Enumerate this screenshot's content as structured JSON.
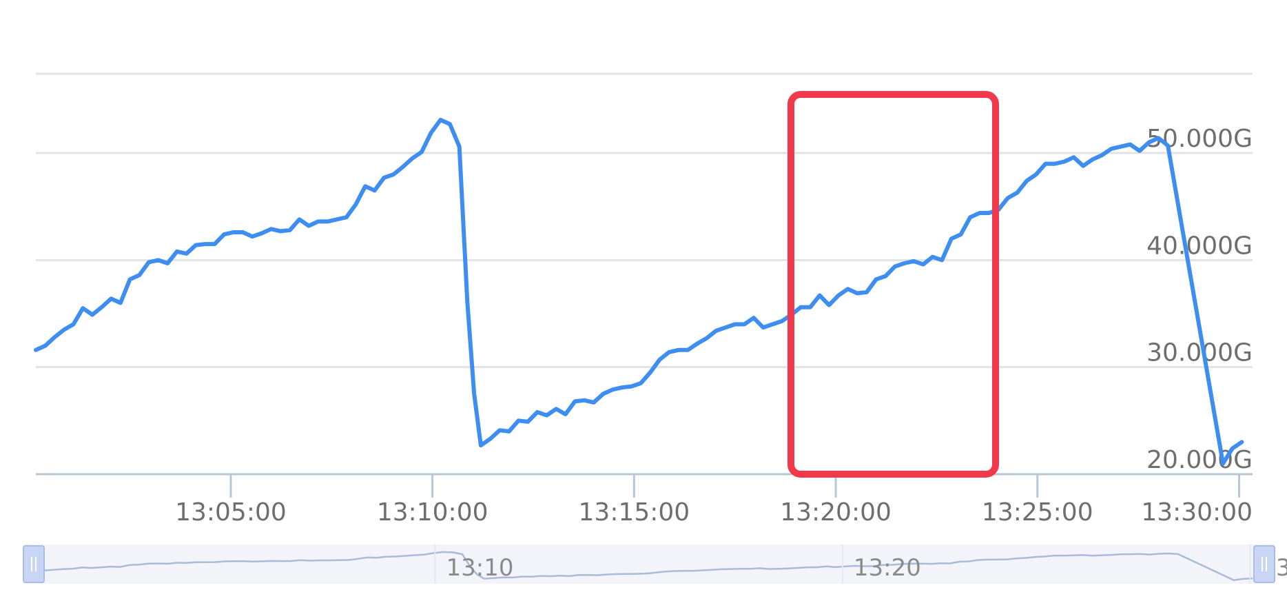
{
  "chart_data": {
    "type": "line",
    "title": "",
    "xlabel": "",
    "ylabel": "",
    "x_range": [
      "13:00:10",
      "13:30:20"
    ],
    "ylim": [
      20,
      58.5
    ],
    "y_unit": "G",
    "grid": true,
    "y_axis_position": "right",
    "colors": {
      "line": "#3d8ef0",
      "grid": "#e3e3e3",
      "axis": "#b9c6d6",
      "highlight": "#f03a4b",
      "zoom_fill": "#f2f4fa",
      "zoom_handle": "#c9d5f5"
    },
    "y_ticks": [
      {
        "value": 20,
        "label": "20.000G"
      },
      {
        "value": 30,
        "label": "30.000G"
      },
      {
        "value": 40,
        "label": "40.000G"
      },
      {
        "value": 50,
        "label": "50.000G"
      },
      {
        "value": 60,
        "label": ""
      }
    ],
    "x_ticks": [
      "13:05:00",
      "13:10:00",
      "13:15:00",
      "13:20:00",
      "13:25:00",
      "13:30:00"
    ],
    "series": [
      {
        "points": [
          [
            "13:00:10",
            31.6
          ],
          [
            "13:00:24",
            32.0
          ],
          [
            "13:00:38",
            32.8
          ],
          [
            "13:00:52",
            33.5
          ],
          [
            "13:01:06",
            34.0
          ],
          [
            "13:01:20",
            35.5
          ],
          [
            "13:01:34",
            34.9
          ],
          [
            "13:01:48",
            35.6
          ],
          [
            "13:02:02",
            36.4
          ],
          [
            "13:02:16",
            36.0
          ],
          [
            "13:02:30",
            38.2
          ],
          [
            "13:02:44",
            38.6
          ],
          [
            "13:02:58",
            39.8
          ],
          [
            "13:03:12",
            40.0
          ],
          [
            "13:03:26",
            39.7
          ],
          [
            "13:03:40",
            40.8
          ],
          [
            "13:03:54",
            40.6
          ],
          [
            "13:04:08",
            41.4
          ],
          [
            "13:04:22",
            41.5
          ],
          [
            "13:04:36",
            41.5
          ],
          [
            "13:04:50",
            42.4
          ],
          [
            "13:05:04",
            42.6
          ],
          [
            "13:05:18",
            42.6
          ],
          [
            "13:05:32",
            42.2
          ],
          [
            "13:05:46",
            42.5
          ],
          [
            "13:06:00",
            42.9
          ],
          [
            "13:06:14",
            42.7
          ],
          [
            "13:06:28",
            42.8
          ],
          [
            "13:06:42",
            43.8
          ],
          [
            "13:06:56",
            43.2
          ],
          [
            "13:07:10",
            43.6
          ],
          [
            "13:07:24",
            43.6
          ],
          [
            "13:07:38",
            43.8
          ],
          [
            "13:07:52",
            44.0
          ],
          [
            "13:08:06",
            45.2
          ],
          [
            "13:08:20",
            46.9
          ],
          [
            "13:08:34",
            46.5
          ],
          [
            "13:08:48",
            47.7
          ],
          [
            "13:09:02",
            48.0
          ],
          [
            "13:09:16",
            48.7
          ],
          [
            "13:09:30",
            49.5
          ],
          [
            "13:09:44",
            50.1
          ],
          [
            "13:09:58",
            51.9
          ],
          [
            "13:10:12",
            53.1
          ],
          [
            "13:10:26",
            52.7
          ],
          [
            "13:10:40",
            50.6
          ],
          [
            "13:10:52",
            36.0
          ],
          [
            "13:11:02",
            27.5
          ],
          [
            "13:11:12",
            22.7
          ],
          [
            "13:11:26",
            23.3
          ],
          [
            "13:11:40",
            24.1
          ],
          [
            "13:11:54",
            24.0
          ],
          [
            "13:12:08",
            25.0
          ],
          [
            "13:12:22",
            24.9
          ],
          [
            "13:12:36",
            25.8
          ],
          [
            "13:12:50",
            25.5
          ],
          [
            "13:13:04",
            26.1
          ],
          [
            "13:13:18",
            25.6
          ],
          [
            "13:13:32",
            26.8
          ],
          [
            "13:13:46",
            26.9
          ],
          [
            "13:14:00",
            26.7
          ],
          [
            "13:14:14",
            27.5
          ],
          [
            "13:14:28",
            27.9
          ],
          [
            "13:14:42",
            28.1
          ],
          [
            "13:14:56",
            28.2
          ],
          [
            "13:15:10",
            28.5
          ],
          [
            "13:15:24",
            29.5
          ],
          [
            "13:15:38",
            30.7
          ],
          [
            "13:15:52",
            31.4
          ],
          [
            "13:16:06",
            31.6
          ],
          [
            "13:16:20",
            31.6
          ],
          [
            "13:16:34",
            32.2
          ],
          [
            "13:16:48",
            32.7
          ],
          [
            "13:17:02",
            33.4
          ],
          [
            "13:17:16",
            33.7
          ],
          [
            "13:17:30",
            34.0
          ],
          [
            "13:17:44",
            34.0
          ],
          [
            "13:17:58",
            34.6
          ],
          [
            "13:18:12",
            33.7
          ],
          [
            "13:18:26",
            34.0
          ],
          [
            "13:18:40",
            34.3
          ],
          [
            "13:18:54",
            34.9
          ],
          [
            "13:19:08",
            35.6
          ],
          [
            "13:19:22",
            35.6
          ],
          [
            "13:19:36",
            36.7
          ],
          [
            "13:19:50",
            35.8
          ],
          [
            "13:20:04",
            36.7
          ],
          [
            "13:20:18",
            37.3
          ],
          [
            "13:20:32",
            36.9
          ],
          [
            "13:20:46",
            37.0
          ],
          [
            "13:21:00",
            38.2
          ],
          [
            "13:21:14",
            38.5
          ],
          [
            "13:21:28",
            39.4
          ],
          [
            "13:21:42",
            39.7
          ],
          [
            "13:21:56",
            39.9
          ],
          [
            "13:22:10",
            39.6
          ],
          [
            "13:22:24",
            40.3
          ],
          [
            "13:22:38",
            40.0
          ],
          [
            "13:22:52",
            42.0
          ],
          [
            "13:23:06",
            42.4
          ],
          [
            "13:23:20",
            44.0
          ],
          [
            "13:23:34",
            44.4
          ],
          [
            "13:23:48",
            44.4
          ],
          [
            "13:24:02",
            44.7
          ],
          [
            "13:24:16",
            45.8
          ],
          [
            "13:24:30",
            46.3
          ],
          [
            "13:24:44",
            47.4
          ],
          [
            "13:24:58",
            48.0
          ],
          [
            "13:25:12",
            49.0
          ],
          [
            "13:25:26",
            49.0
          ],
          [
            "13:25:40",
            49.2
          ],
          [
            "13:25:54",
            49.6
          ],
          [
            "13:26:08",
            48.8
          ],
          [
            "13:26:22",
            49.4
          ],
          [
            "13:26:36",
            49.8
          ],
          [
            "13:26:50",
            50.4
          ],
          [
            "13:27:04",
            50.6
          ],
          [
            "13:27:18",
            50.8
          ],
          [
            "13:27:32",
            50.2
          ],
          [
            "13:27:46",
            51.0
          ],
          [
            "13:28:00",
            51.4
          ],
          [
            "13:28:14",
            50.7
          ],
          [
            "13:29:36",
            21.0
          ],
          [
            "13:29:50",
            22.4
          ],
          [
            "13:30:04",
            23.0
          ]
        ]
      }
    ]
  }
}
